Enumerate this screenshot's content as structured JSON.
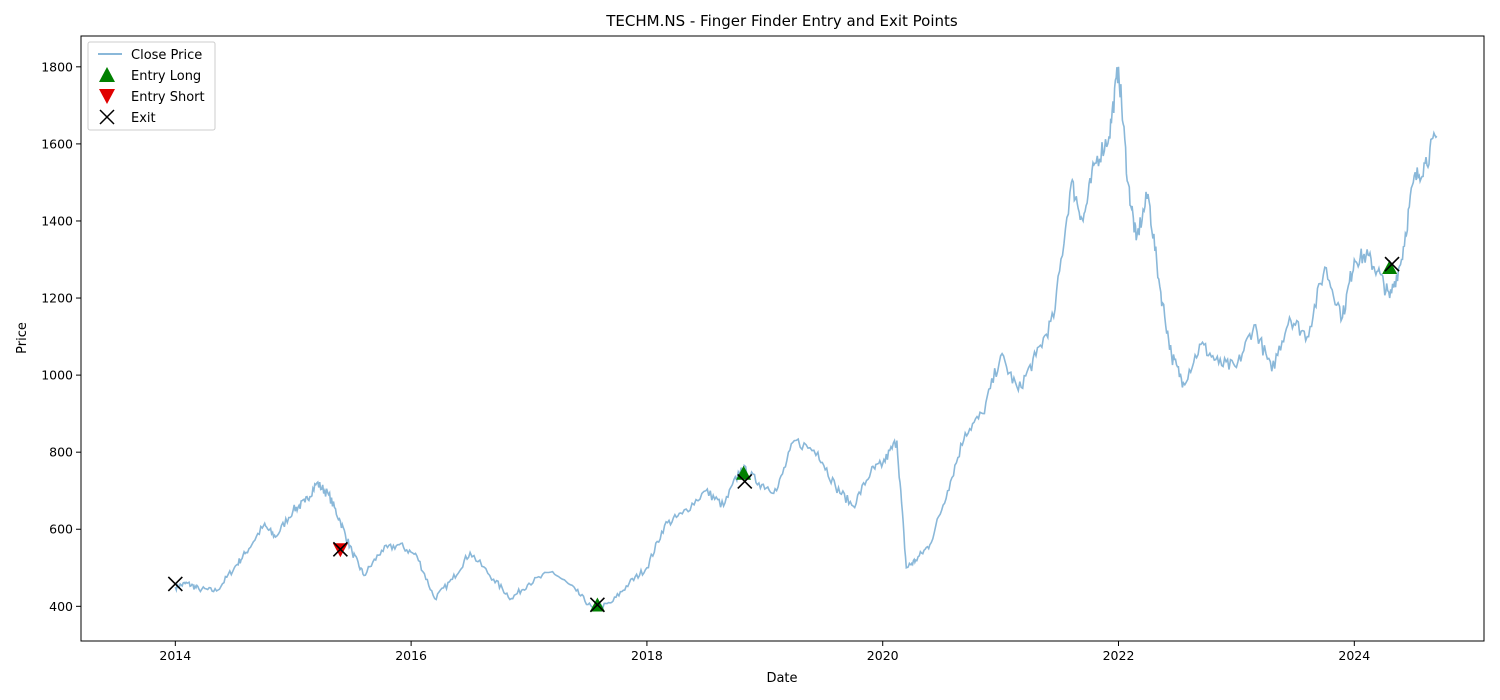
{
  "chart_data": {
    "type": "line",
    "title": "TECHM.NS - Finger Finder Entry and Exit Points",
    "xlabel": "Date",
    "ylabel": "Price",
    "xlim": [
      2013.2,
      2025.1
    ],
    "ylim": [
      310,
      1880
    ],
    "x_ticks": [
      2014,
      2016,
      2018,
      2020,
      2022,
      2024
    ],
    "y_ticks": [
      400,
      600,
      800,
      1000,
      1200,
      1400,
      1600,
      1800
    ],
    "grid": false,
    "legend_position": "top-left",
    "colors": {
      "close": "#8ab8d9",
      "entry_long": "#008000",
      "entry_short": "#e00000",
      "exit": "#000000"
    },
    "series": [
      {
        "name": "Close Price",
        "kind": "line",
        "x": [
          2014.0,
          2014.1,
          2014.2,
          2014.35,
          2014.5,
          2014.6,
          2014.75,
          2014.85,
          2015.0,
          2015.1,
          2015.2,
          2015.3,
          2015.4,
          2015.5,
          2015.6,
          2015.75,
          2015.9,
          2016.05,
          2016.2,
          2016.35,
          2016.5,
          2016.7,
          2016.85,
          2017.0,
          2017.2,
          2017.4,
          2017.55,
          2017.7,
          2017.85,
          2018.0,
          2018.15,
          2018.3,
          2018.5,
          2018.65,
          2018.8,
          2018.95,
          2019.1,
          2019.25,
          2019.45,
          2019.6,
          2019.75,
          2019.9,
          2020.0,
          2020.12,
          2020.2,
          2020.28,
          2020.4,
          2020.55,
          2020.7,
          2020.85,
          2021.0,
          2021.15,
          2021.3,
          2021.45,
          2021.6,
          2021.7,
          2021.8,
          2021.92,
          2022.0,
          2022.08,
          2022.15,
          2022.25,
          2022.35,
          2022.45,
          2022.55,
          2022.7,
          2022.85,
          2023.0,
          2023.15,
          2023.3,
          2023.45,
          2023.6,
          2023.75,
          2023.9,
          2024.0,
          2024.1,
          2024.2,
          2024.3,
          2024.4,
          2024.5,
          2024.6,
          2024.7
        ],
        "y": [
          450,
          460,
          445,
          440,
          500,
          540,
          610,
          580,
          650,
          670,
          720,
          690,
          620,
          540,
          480,
          545,
          560,
          530,
          420,
          470,
          540,
          470,
          420,
          460,
          490,
          440,
          390,
          410,
          460,
          500,
          610,
          640,
          700,
          660,
          760,
          720,
          700,
          830,
          800,
          710,
          660,
          750,
          770,
          830,
          500,
          520,
          560,
          700,
          850,
          900,
          1050,
          960,
          1050,
          1150,
          1500,
          1400,
          1550,
          1620,
          1800,
          1500,
          1350,
          1470,
          1230,
          1050,
          980,
          1080,
          1030,
          1020,
          1130,
          1010,
          1150,
          1100,
          1280,
          1150,
          1300,
          1310,
          1270,
          1200,
          1300,
          1500,
          1550,
          1620
        ]
      },
      {
        "name": "Entry Long",
        "kind": "marker",
        "x": [
          2017.58,
          2018.82,
          2024.3
        ],
        "y": [
          402,
          744,
          1278
        ]
      },
      {
        "name": "Entry Short",
        "kind": "marker",
        "x": [
          2015.4
        ],
        "y": [
          548
        ]
      },
      {
        "name": "Exit",
        "kind": "marker",
        "x": [
          2014.0,
          2015.4,
          2017.58,
          2018.83,
          2024.32
        ],
        "y": [
          458,
          548,
          404,
          724,
          1288
        ]
      }
    ]
  }
}
